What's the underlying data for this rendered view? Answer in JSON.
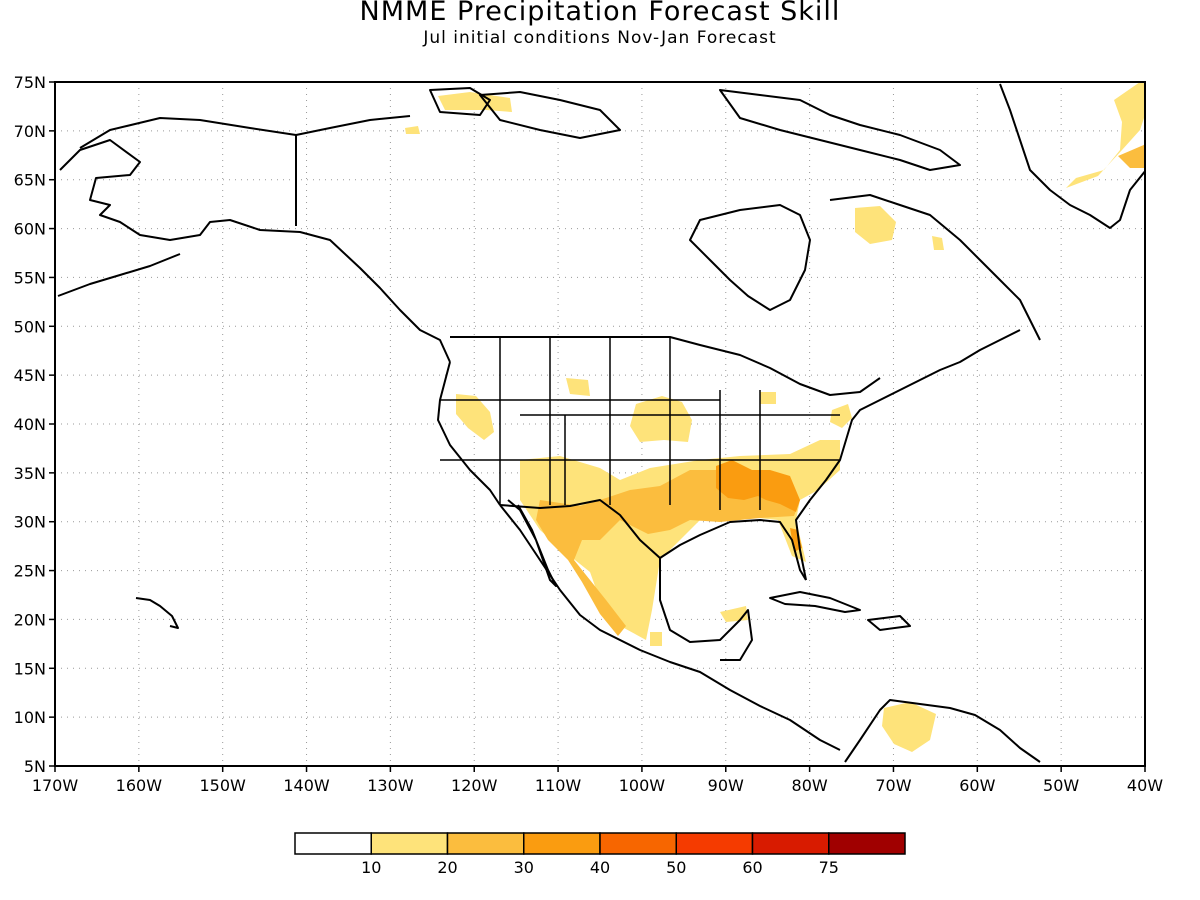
{
  "title": "NMME Precipitation Forecast Skill",
  "subtitle": "Jul initial conditions   Nov-Jan Forecast",
  "map": {
    "projection": "cylindrical-equidistant",
    "lon_range": [
      -170,
      -40
    ],
    "lat_range": [
      5,
      75
    ],
    "grid": "dotted",
    "lat_ticks": [
      "75N",
      "70N",
      "65N",
      "60N",
      "55N",
      "50N",
      "45N",
      "40N",
      "35N",
      "30N",
      "25N",
      "20N",
      "15N",
      "10N",
      "5N"
    ],
    "lon_ticks": [
      "170W",
      "160W",
      "150W",
      "140W",
      "130W",
      "120W",
      "110W",
      "100W",
      "90W",
      "80W",
      "70W",
      "60W",
      "50W",
      "40W"
    ],
    "skill_regions": [
      {
        "region": "southern US plains and Gulf coast",
        "class": "20-30"
      },
      {
        "region": "southeastern US (Alabama, Georgia)",
        "class": "30-40"
      },
      {
        "region": "northern Mexico",
        "class": "20-30"
      },
      {
        "region": "Nevada",
        "class": "10-20"
      },
      {
        "region": "Nebraska",
        "class": "10-20"
      },
      {
        "region": "Greenland east coast",
        "class": "20-30"
      },
      {
        "region": "northern Quebec",
        "class": "10-20"
      },
      {
        "region": "Venezuela",
        "class": "10-20"
      }
    ]
  },
  "colorbar": {
    "labels": [
      "10",
      "20",
      "30",
      "40",
      "50",
      "60",
      "75"
    ],
    "colors": [
      "#ffffff",
      "#fee37a",
      "#fbbd3e",
      "#fa9c10",
      "#f76600",
      "#f53b00",
      "#d81b00",
      "#a00000"
    ]
  }
}
